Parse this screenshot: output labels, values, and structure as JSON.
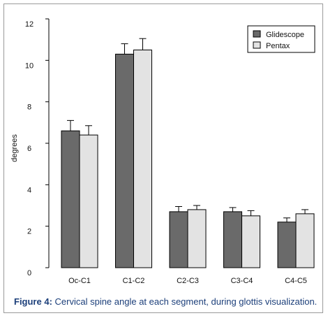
{
  "chart_data": {
    "type": "bar",
    "categories": [
      "Oc-C1",
      "C1-C2",
      "C2-C3",
      "C3-C4",
      "C4-C5"
    ],
    "series": [
      {
        "name": "Glidescope",
        "values": [
          6.6,
          10.3,
          2.7,
          2.7,
          2.2
        ],
        "errors": [
          0.5,
          0.5,
          0.25,
          0.2,
          0.2
        ],
        "color": "#6a6a6a"
      },
      {
        "name": "Pentax",
        "values": [
          6.4,
          10.5,
          2.8,
          2.5,
          2.6
        ],
        "errors": [
          0.45,
          0.55,
          0.2,
          0.25,
          0.2
        ],
        "color": "#e3e3e3"
      }
    ],
    "ylabel": "degrees",
    "xlabel": "",
    "ylim": [
      0,
      12
    ],
    "yticks": [
      0,
      2,
      4,
      6,
      8,
      10,
      12
    ],
    "legend_position": "top-right",
    "grid": false
  },
  "caption": {
    "label": "Figure 4:",
    "text": " Cervical spine angle at each segment, during glottis visualization."
  }
}
